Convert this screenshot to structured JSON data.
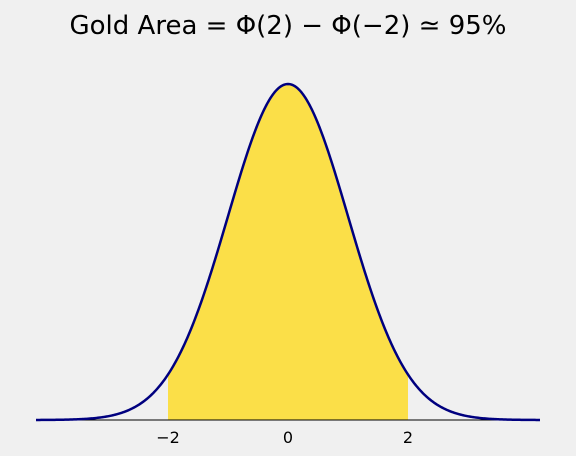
{
  "chart_data": {
    "type": "area",
    "title": "Gold Area = Φ(2) − Φ(−2) ≃ 95%",
    "xlabel": "",
    "ylabel": "",
    "xlim": [
      -4.2,
      4.2
    ],
    "ylim": [
      0,
      0.42
    ],
    "x_ticks": [
      -2,
      0,
      2
    ],
    "x_tick_labels": [
      "−2",
      "0",
      "2"
    ],
    "grid": false,
    "series": [
      {
        "kind": "line",
        "function": "standard normal density",
        "mean": 0,
        "sd": 1,
        "domain": [
          -4.2,
          4.2
        ],
        "color": "#00007f",
        "x": [
          -4,
          -3.5,
          -3,
          -2.5,
          -2,
          -1.5,
          -1,
          -0.5,
          0,
          0.5,
          1,
          1.5,
          2,
          2.5,
          3,
          3.5,
          4
        ],
        "y": [
          0.0001,
          0.0009,
          0.0044,
          0.0175,
          0.054,
          0.1295,
          0.242,
          0.3521,
          0.3989,
          0.3521,
          0.242,
          0.1295,
          0.054,
          0.0175,
          0.0044,
          0.0009,
          0.0001
        ]
      },
      {
        "kind": "shaded_area",
        "from": -2,
        "to": 2,
        "color": "#fbdf48"
      }
    ]
  }
}
